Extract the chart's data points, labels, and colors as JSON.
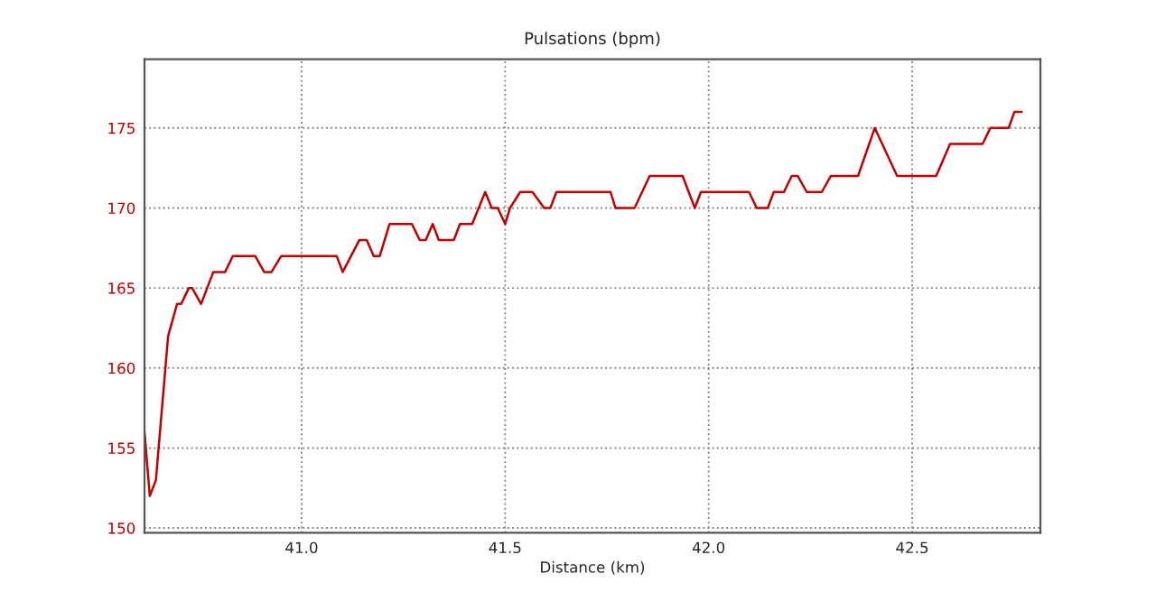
{
  "chart_data": {
    "type": "line",
    "title": "Pulsations (bpm)",
    "xlabel": "Distance (km)",
    "x": [
      40.614,
      40.627,
      40.642,
      40.672,
      40.694,
      40.704,
      40.723,
      40.731,
      40.753,
      40.783,
      40.812,
      40.831,
      40.886,
      40.908,
      40.926,
      40.95,
      41.086,
      41.101,
      41.142,
      41.16,
      41.177,
      41.192,
      41.216,
      41.271,
      41.29,
      41.305,
      41.322,
      41.337,
      41.374,
      41.389,
      41.419,
      41.451,
      41.467,
      41.482,
      41.5,
      41.512,
      41.537,
      41.567,
      41.596,
      41.611,
      41.626,
      41.759,
      41.771,
      41.818,
      41.855,
      41.936,
      41.966,
      41.981,
      42.099,
      42.118,
      42.145,
      42.16,
      42.185,
      42.204,
      42.219,
      42.241,
      42.278,
      42.3,
      42.367,
      42.408,
      42.463,
      42.559,
      42.593,
      42.673,
      42.692,
      42.737,
      42.751,
      42.769
    ],
    "series": [
      {
        "color": "#c00000",
        "values": [
          156,
          152,
          153,
          162,
          164,
          164,
          165,
          165,
          164,
          166,
          166,
          167,
          167,
          166,
          166,
          167,
          167,
          166,
          168,
          168,
          167,
          167,
          169,
          169,
          168,
          168,
          169,
          168,
          168,
          169,
          169,
          171,
          170,
          170,
          169,
          170,
          171,
          171,
          170,
          170,
          171,
          171,
          170,
          170,
          172,
          172,
          170,
          171,
          171,
          170,
          170,
          171,
          171,
          172,
          172,
          171,
          171,
          172,
          172,
          175,
          172,
          172,
          174,
          174,
          175,
          175,
          176,
          176
        ]
      }
    ],
    "xlim": [
      40.614,
      42.815
    ],
    "ylim": [
      149.7,
      179.3
    ],
    "xticks": [
      {
        "value": 41,
        "label": "41.0"
      },
      {
        "value": 41.5,
        "label": "41.5"
      },
      {
        "value": 42,
        "label": "42.0"
      },
      {
        "value": 42.5,
        "label": "42.5"
      }
    ],
    "yticks": [
      150,
      155,
      160,
      165,
      170,
      175
    ],
    "grid": true,
    "line_style": "solid"
  }
}
